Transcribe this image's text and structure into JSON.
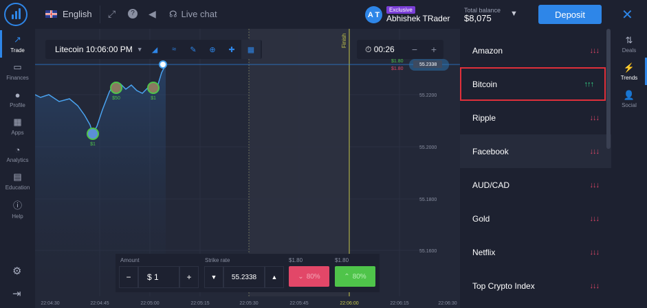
{
  "header": {
    "language": "English",
    "live_chat": "Live chat",
    "user_initials": "A T",
    "exclusive_badge": "Exclusive",
    "user_name": "Abhishek TRader",
    "balance_title": "Total balance",
    "balance_value": "$8,075",
    "deposit_label": "Deposit"
  },
  "left_nav": {
    "items": [
      {
        "label": "Trade",
        "icon": "chart-line-icon"
      },
      {
        "label": "Finances",
        "icon": "wallet-icon"
      },
      {
        "label": "Profile",
        "icon": "user-icon"
      },
      {
        "label": "Apps",
        "icon": "grid-icon"
      },
      {
        "label": "Analytics",
        "icon": "pie-chart-icon"
      },
      {
        "label": "Education",
        "icon": "book-icon"
      },
      {
        "label": "Help",
        "icon": "info-icon"
      }
    ]
  },
  "chart_toolbar": {
    "asset": "Litecoin 10:06:00 PM",
    "timer": "00:26"
  },
  "chart": {
    "price_labels": [
      "55.2338",
      "55.2200",
      "55.2000",
      "55.1800",
      "55.1600"
    ],
    "time_labels": [
      "22:04:30",
      "22:04:45",
      "22:05:00",
      "22:05:15",
      "22:05:30",
      "22:05:45",
      "22:06:00",
      "22:06:15",
      "22:06:30"
    ],
    "markers": [
      {
        "amount": "$1"
      },
      {
        "amount": "$50"
      },
      {
        "amount": "$1"
      }
    ],
    "finish_label": "Finish",
    "overlay_up": "$1.80",
    "overlay_down": "$1.80",
    "colors": {
      "line": "#4aa3f0",
      "up": "#4fc44a",
      "down": "#e24768",
      "finish": "#c7c94b"
    }
  },
  "trade_panel": {
    "amount_label": "Amount",
    "amount_value": "$ 1",
    "strike_label": "Strike rate",
    "strike_value": "55.2338",
    "put_payout": "$1.80",
    "call_payout": "$1.80",
    "put_percent": "80%",
    "call_percent": "80%"
  },
  "trends": {
    "items": [
      {
        "name": "Amazon",
        "arrows": "↓↓↓",
        "direction": "down"
      },
      {
        "name": "Bitcoin",
        "arrows": "↑↑↑",
        "direction": "up"
      },
      {
        "name": "Ripple",
        "arrows": "↓↓↓",
        "direction": "down"
      },
      {
        "name": "Facebook",
        "arrows": "↓↓↓",
        "direction": "down"
      },
      {
        "name": "AUD/CAD",
        "arrows": "↓↓↓",
        "direction": "down"
      },
      {
        "name": "Gold",
        "arrows": "↓↓↓",
        "direction": "down"
      },
      {
        "name": "Netflix",
        "arrows": "↓↓↓",
        "direction": "down"
      },
      {
        "name": "Top Crypto Index",
        "arrows": "↓↓↓",
        "direction": "down"
      }
    ]
  },
  "right_nav": {
    "items": [
      {
        "label": "Deals",
        "icon": "sort-icon"
      },
      {
        "label": "Trends",
        "icon": "lightning-icon"
      },
      {
        "label": "Social",
        "icon": "add-user-icon"
      }
    ]
  }
}
